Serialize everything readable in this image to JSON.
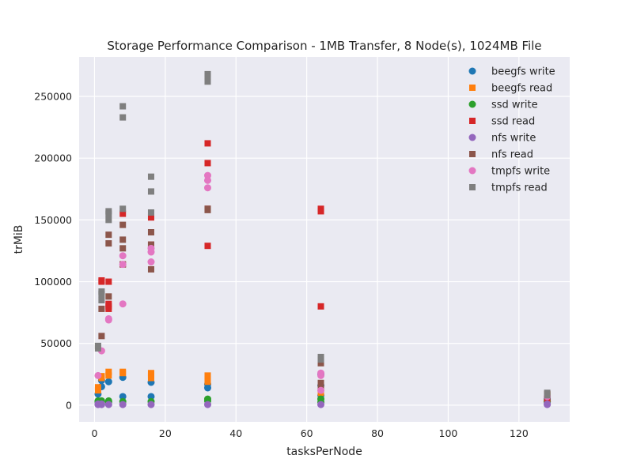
{
  "chart_data": {
    "type": "scatter",
    "title": "Storage Performance Comparison - 1MB Transfer, 8 Node(s), 1024MB File",
    "xlabel": "tasksPerNode",
    "ylabel": "trMiB",
    "xlim": [
      -4.35,
      134.35
    ],
    "ylim": [
      -13500,
      282000
    ],
    "xticks": [
      0,
      20,
      40,
      60,
      80,
      100,
      120
    ],
    "yticks": [
      0,
      50000,
      100000,
      150000,
      200000,
      250000
    ],
    "grid": true,
    "legend_position": "top-right",
    "series": [
      {
        "name": "beegfs write",
        "color": "#1f77b4",
        "marker": "circle",
        "points": [
          [
            1,
            9000
          ],
          [
            1,
            3000
          ],
          [
            2,
            15000
          ],
          [
            2,
            20000
          ],
          [
            4,
            19000
          ],
          [
            8,
            22500
          ],
          [
            8,
            7000
          ],
          [
            16,
            18500
          ],
          [
            16,
            7000
          ],
          [
            32,
            14000
          ],
          [
            32,
            17000
          ],
          [
            64,
            8000
          ],
          [
            64,
            16000
          ],
          [
            64,
            25000
          ],
          [
            128,
            3000
          ],
          [
            128,
            5000
          ]
        ]
      },
      {
        "name": "beegfs read",
        "color": "#ff7f0e",
        "marker": "square",
        "points": [
          [
            1,
            12000
          ],
          [
            1,
            14500
          ],
          [
            2,
            22000
          ],
          [
            2,
            23500
          ],
          [
            4,
            27000
          ],
          [
            4,
            24000
          ],
          [
            8,
            27000
          ],
          [
            8,
            26000
          ],
          [
            16,
            26000
          ],
          [
            16,
            24000
          ],
          [
            16,
            22000
          ],
          [
            32,
            24000
          ],
          [
            32,
            21000
          ],
          [
            32,
            19000
          ],
          [
            64,
            10000
          ],
          [
            64,
            14000
          ],
          [
            128,
            9000
          ],
          [
            128,
            8000
          ]
        ]
      },
      {
        "name": "ssd write",
        "color": "#2ca02c",
        "marker": "circle",
        "points": [
          [
            1,
            2500
          ],
          [
            1,
            3500
          ],
          [
            2,
            2500
          ],
          [
            2,
            3500
          ],
          [
            4,
            2500
          ],
          [
            4,
            3500
          ],
          [
            8,
            3000
          ],
          [
            16,
            3000
          ],
          [
            32,
            3500
          ],
          [
            32,
            5000
          ],
          [
            64,
            2500
          ],
          [
            64,
            5000
          ],
          [
            128,
            2500
          ],
          [
            128,
            3500
          ]
        ]
      },
      {
        "name": "ssd read",
        "color": "#d62728",
        "marker": "square",
        "points": [
          [
            2,
            100000
          ],
          [
            2,
            101000
          ],
          [
            4,
            100000
          ],
          [
            4,
            82000
          ],
          [
            4,
            80000
          ],
          [
            4,
            78000
          ],
          [
            8,
            114000
          ],
          [
            8,
            155000
          ],
          [
            16,
            152000
          ],
          [
            16,
            130000
          ],
          [
            32,
            212000
          ],
          [
            32,
            196000
          ],
          [
            32,
            159000
          ],
          [
            32,
            129000
          ],
          [
            64,
            159000
          ],
          [
            64,
            157000
          ],
          [
            64,
            80000
          ],
          [
            128,
            5000
          ]
        ]
      },
      {
        "name": "nfs write",
        "color": "#9467bd",
        "marker": "circle",
        "points": [
          [
            1,
            500
          ],
          [
            1,
            1000
          ],
          [
            2,
            500
          ],
          [
            2,
            1000
          ],
          [
            4,
            500
          ],
          [
            8,
            500
          ],
          [
            16,
            500
          ],
          [
            32,
            500
          ],
          [
            64,
            500
          ],
          [
            128,
            500
          ],
          [
            128,
            1000
          ]
        ]
      },
      {
        "name": "nfs read",
        "color": "#8c564b",
        "marker": "square",
        "points": [
          [
            2,
            56000
          ],
          [
            2,
            78000
          ],
          [
            4,
            88000
          ],
          [
            4,
            138000
          ],
          [
            4,
            131000
          ],
          [
            8,
            146000
          ],
          [
            8,
            134000
          ],
          [
            8,
            127000
          ],
          [
            8,
            114000
          ],
          [
            16,
            140000
          ],
          [
            16,
            130000
          ],
          [
            16,
            110000
          ],
          [
            32,
            159000
          ],
          [
            32,
            158000
          ],
          [
            64,
            34000
          ],
          [
            64,
            18000
          ],
          [
            64,
            15000
          ],
          [
            128,
            9000
          ]
        ]
      },
      {
        "name": "tmpfs write",
        "color": "#e377c2",
        "marker": "circle",
        "points": [
          [
            1,
            24000
          ],
          [
            2,
            44000
          ],
          [
            4,
            70000
          ],
          [
            4,
            69000
          ],
          [
            8,
            82000
          ],
          [
            8,
            114000
          ],
          [
            8,
            121000
          ],
          [
            16,
            127000
          ],
          [
            16,
            124000
          ],
          [
            16,
            116000
          ],
          [
            32,
            186000
          ],
          [
            32,
            182000
          ],
          [
            32,
            176000
          ],
          [
            64,
            26000
          ],
          [
            64,
            24000
          ],
          [
            64,
            12000
          ],
          [
            128,
            7000
          ]
        ]
      },
      {
        "name": "tmpfs read",
        "color": "#7f7f7f",
        "marker": "square",
        "points": [
          [
            1,
            46000
          ],
          [
            1,
            48000
          ],
          [
            2,
            92000
          ],
          [
            2,
            90000
          ],
          [
            2,
            85000
          ],
          [
            4,
            157000
          ],
          [
            4,
            155000
          ],
          [
            4,
            150000
          ],
          [
            8,
            242000
          ],
          [
            8,
            233000
          ],
          [
            8,
            159000
          ],
          [
            16,
            185000
          ],
          [
            16,
            173000
          ],
          [
            16,
            156000
          ],
          [
            32,
            268000
          ],
          [
            32,
            266000
          ],
          [
            32,
            262000
          ],
          [
            64,
            39000
          ],
          [
            64,
            37000
          ],
          [
            128,
            10000
          ],
          [
            128,
            8000
          ]
        ]
      }
    ]
  }
}
